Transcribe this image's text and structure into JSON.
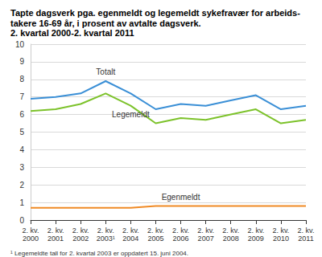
{
  "chart_data": {
    "type": "line",
    "title": "Tapte dagsverk pga. egenmeldt og legemeldt sykefravær for arbeids-\ntakere 16-69 år, i prosent av avtalte dagsverk.",
    "subtitle": "2. kvartal 2000-2. kvartal 2011",
    "footnote": "¹ Legemeldte tall for 2. kvartal 2003 er oppdatert 15. juni 2004.",
    "categories": [
      "2. kv. 2000",
      "2. kv. 2001",
      "2. kv. 2002",
      "2. kv. 2003¹",
      "2. kv. 2004",
      "2. kv. 2005",
      "2. kv. 2006",
      "2. kv. 2007",
      "2. kv. 2008",
      "2. kv. 2009",
      "2. kv. 2010",
      "2. kv. 2011"
    ],
    "series": [
      {
        "name": "Totalt",
        "color": "#3a8fd6",
        "values": [
          6.9,
          7.0,
          7.2,
          7.9,
          7.2,
          6.3,
          6.6,
          6.5,
          6.8,
          7.1,
          6.3,
          6.5
        ]
      },
      {
        "name": "Legemeldt",
        "color": "#7cc22a",
        "values": [
          6.2,
          6.3,
          6.6,
          7.2,
          6.5,
          5.5,
          5.8,
          5.7,
          6.0,
          6.3,
          5.5,
          5.7
        ]
      },
      {
        "name": "Egenmeldt",
        "color": "#f08a24",
        "values": [
          0.7,
          0.7,
          0.7,
          0.7,
          0.7,
          0.8,
          0.8,
          0.8,
          0.8,
          0.8,
          0.8,
          0.8
        ]
      }
    ],
    "ylim": [
      0,
      10
    ],
    "yticks": [
      0,
      1,
      2,
      3,
      4,
      5,
      6,
      7,
      8,
      9,
      10
    ],
    "grid": true
  }
}
